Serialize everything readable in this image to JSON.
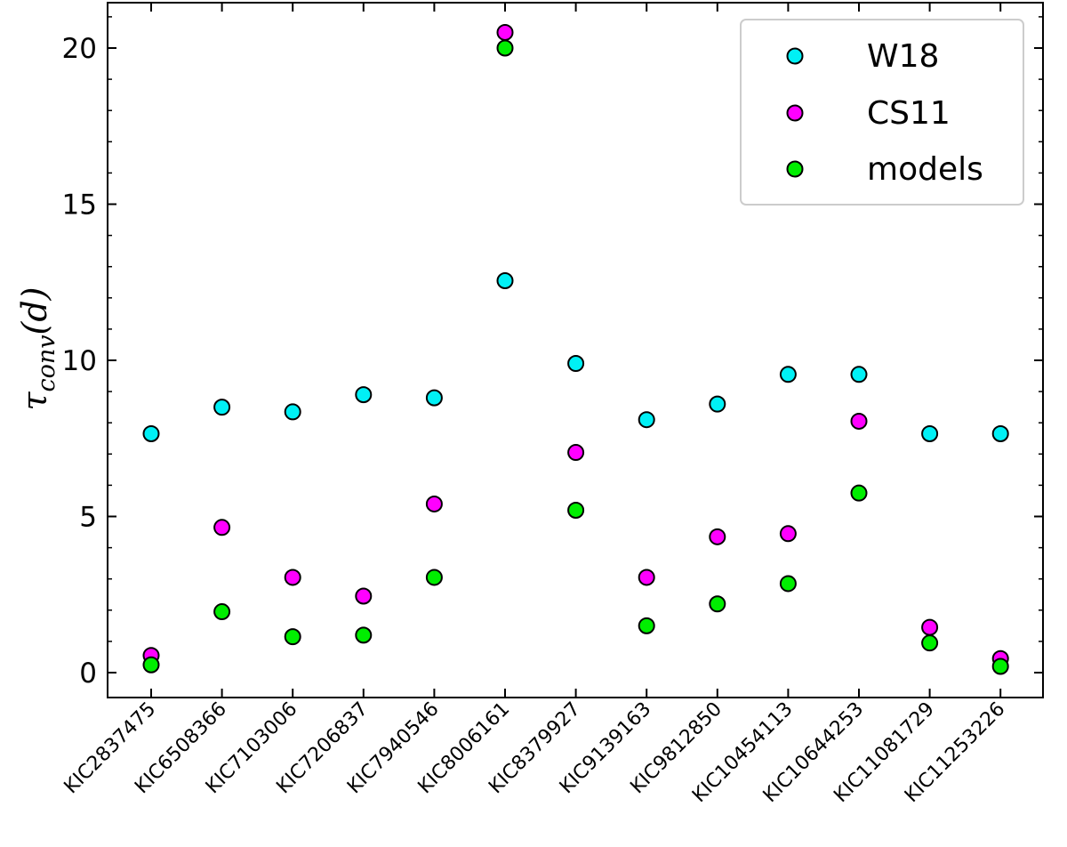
{
  "chart_data": {
    "type": "scatter",
    "title": "",
    "xlabel": "",
    "ylabel": {
      "symbol": "τ",
      "subscript": "conv",
      "unit": "(d)"
    },
    "ylim": [
      -0.8,
      21.5
    ],
    "yticks": [
      0,
      5,
      10,
      15,
      20
    ],
    "categories": [
      "KIC2837475",
      "KIC6508366",
      "KIC7103006",
      "KIC7206837",
      "KIC7940546",
      "KIC8006161",
      "KIC8379927",
      "KIC9139163",
      "KIC9812850",
      "KIC10454113",
      "KIC10644253",
      "KIC11081729",
      "KIC11253226"
    ],
    "series": [
      {
        "name": "W18",
        "color": "#00f0f5",
        "values": [
          7.65,
          8.5,
          8.35,
          8.9,
          8.8,
          12.55,
          9.9,
          8.1,
          8.6,
          9.55,
          9.55,
          7.65,
          7.65
        ]
      },
      {
        "name": "CS11",
        "color": "#ff00ff",
        "values": [
          0.55,
          4.65,
          3.05,
          2.45,
          5.4,
          20.5,
          7.05,
          3.05,
          4.35,
          4.45,
          8.05,
          1.45,
          0.45
        ]
      },
      {
        "name": "models",
        "color": "#00ee00",
        "values": [
          0.25,
          1.95,
          1.15,
          1.2,
          3.05,
          20.0,
          5.2,
          1.5,
          2.2,
          2.85,
          5.75,
          0.95,
          0.2
        ]
      }
    ],
    "legend": {
      "position": "top-right"
    },
    "grid": false
  }
}
